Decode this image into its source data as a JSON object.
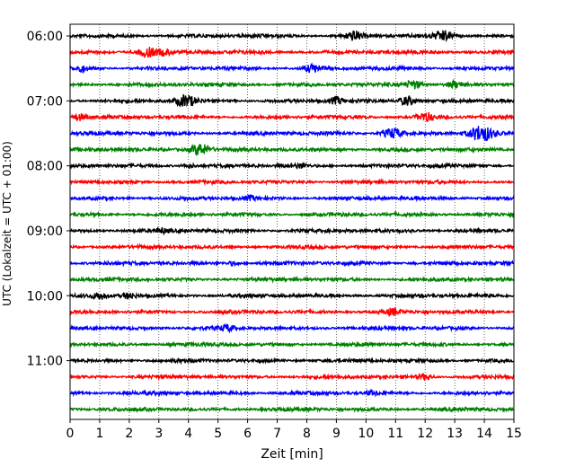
{
  "chart_data": {
    "type": "line",
    "title": "",
    "xlabel": "Zeit  [min]",
    "ylabel": "UTC (Lokalzeit = UTC + 01:00)",
    "xlim": [
      0,
      15
    ],
    "x_ticks": [
      0,
      1,
      2,
      3,
      4,
      5,
      6,
      7,
      8,
      9,
      10,
      11,
      12,
      13,
      14,
      15
    ],
    "y_tick_labels": [
      "06:00",
      "07:00",
      "08:00",
      "09:00",
      "10:00",
      "11:00"
    ],
    "trace_interval_minutes": 15,
    "start_time": "06:00",
    "grid": "vertical dotted lines at each minute",
    "colors": [
      "#000000",
      "#ff0000",
      "#0000ff",
      "#008000"
    ],
    "series": [
      {
        "row_time": "06:00",
        "color": "#000000",
        "events": [
          {
            "t": 9.6,
            "amp": 0.45
          },
          {
            "t": 12.6,
            "amp": 0.5
          }
        ]
      },
      {
        "row_time": "06:15",
        "color": "#ff0000",
        "events": [
          {
            "t": 2.6,
            "amp": 0.55
          },
          {
            "t": 3.2,
            "amp": 0.3
          }
        ]
      },
      {
        "row_time": "06:30",
        "color": "#0000ff",
        "events": [
          {
            "t": 0.4,
            "amp": 0.3
          },
          {
            "t": 8.2,
            "amp": 0.4
          }
        ]
      },
      {
        "row_time": "06:45",
        "color": "#008000",
        "events": [
          {
            "t": 11.6,
            "amp": 0.45
          },
          {
            "t": 13.0,
            "amp": 0.35
          }
        ]
      },
      {
        "row_time": "07:00",
        "color": "#000000",
        "events": [
          {
            "t": 3.9,
            "amp": 0.6
          },
          {
            "t": 11.4,
            "amp": 0.5
          },
          {
            "t": 9.0,
            "amp": 0.35
          }
        ]
      },
      {
        "row_time": "07:15",
        "color": "#ff0000",
        "events": [
          {
            "t": 0.3,
            "amp": 0.35
          },
          {
            "t": 12.0,
            "amp": 0.45
          }
        ]
      },
      {
        "row_time": "07:30",
        "color": "#0000ff",
        "events": [
          {
            "t": 10.9,
            "amp": 0.55
          },
          {
            "t": 13.9,
            "amp": 0.8
          }
        ]
      },
      {
        "row_time": "07:45",
        "color": "#008000",
        "events": [
          {
            "t": 4.4,
            "amp": 0.65
          }
        ]
      },
      {
        "row_time": "08:00",
        "color": "#000000",
        "events": [
          {
            "t": 4.0,
            "amp": 0.2
          },
          {
            "t": 7.8,
            "amp": 0.2
          }
        ]
      },
      {
        "row_time": "08:15",
        "color": "#ff0000",
        "events": []
      },
      {
        "row_time": "08:30",
        "color": "#0000ff",
        "events": [
          {
            "t": 6.1,
            "amp": 0.2
          }
        ]
      },
      {
        "row_time": "08:45",
        "color": "#008000",
        "events": []
      },
      {
        "row_time": "09:00",
        "color": "#000000",
        "events": [
          {
            "t": 3.1,
            "amp": 0.2
          }
        ]
      },
      {
        "row_time": "09:15",
        "color": "#ff0000",
        "events": []
      },
      {
        "row_time": "09:30",
        "color": "#0000ff",
        "events": [
          {
            "t": 5.5,
            "amp": 0.2
          }
        ]
      },
      {
        "row_time": "09:45",
        "color": "#008000",
        "events": []
      },
      {
        "row_time": "10:00",
        "color": "#000000",
        "events": [
          {
            "t": 1.0,
            "amp": 0.3
          },
          {
            "t": 2.0,
            "amp": 0.3
          }
        ]
      },
      {
        "row_time": "10:15",
        "color": "#ff0000",
        "events": [
          {
            "t": 10.9,
            "amp": 0.3
          }
        ]
      },
      {
        "row_time": "10:30",
        "color": "#0000ff",
        "events": [
          {
            "t": 5.3,
            "amp": 0.3
          }
        ]
      },
      {
        "row_time": "10:45",
        "color": "#008000",
        "events": []
      },
      {
        "row_time": "11:00",
        "color": "#000000",
        "events": []
      },
      {
        "row_time": "11:15",
        "color": "#ff0000",
        "events": [
          {
            "t": 12.0,
            "amp": 0.3
          }
        ]
      },
      {
        "row_time": "11:30",
        "color": "#0000ff",
        "events": [
          {
            "t": 10.2,
            "amp": 0.2
          }
        ]
      },
      {
        "row_time": "11:45",
        "color": "#008000",
        "events": []
      }
    ]
  }
}
